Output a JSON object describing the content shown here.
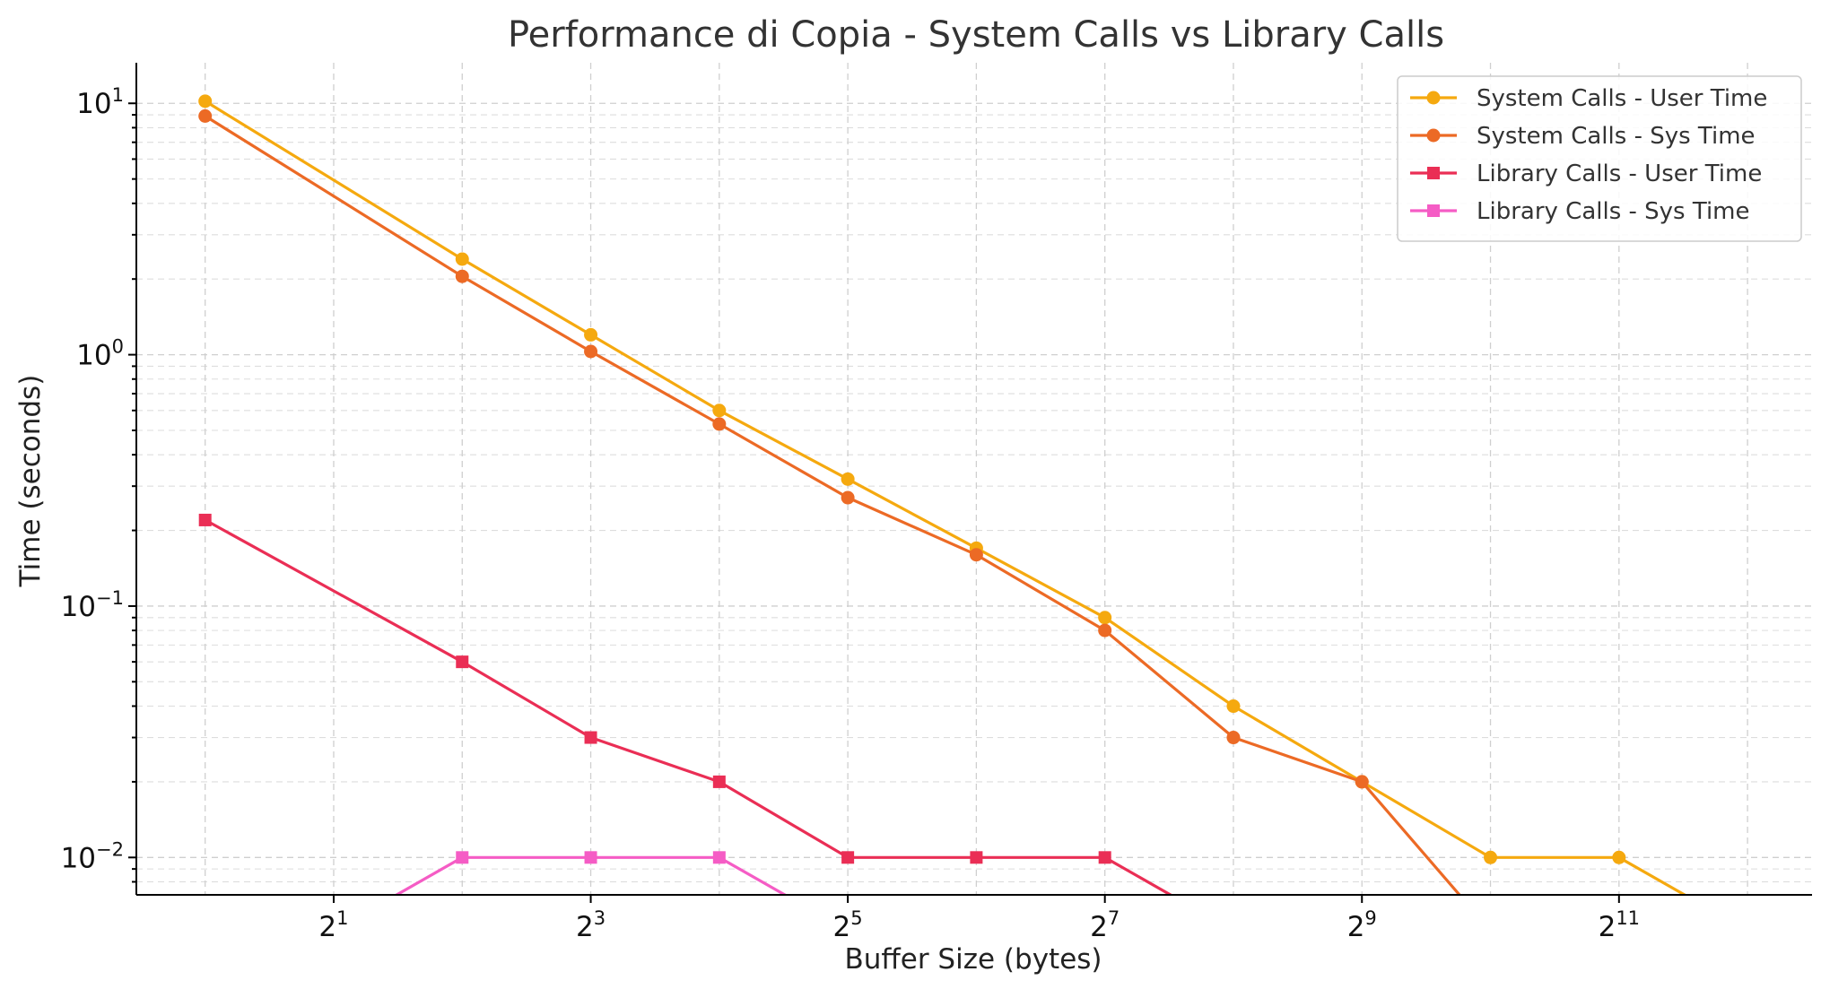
{
  "chart_data": {
    "type": "line",
    "title": "Performance di Copia - System Calls vs Library Calls",
    "xlabel": "Buffer Size (bytes)",
    "ylabel": "Time (seconds)",
    "x_scale": "log2",
    "y_scale": "log10",
    "x_ticks": [
      {
        "base": "2",
        "exp": "1",
        "value": 2
      },
      {
        "base": "2",
        "exp": "3",
        "value": 8
      },
      {
        "base": "2",
        "exp": "5",
        "value": 32
      },
      {
        "base": "2",
        "exp": "7",
        "value": 128
      },
      {
        "base": "2",
        "exp": "9",
        "value": 512
      },
      {
        "base": "2",
        "exp": "11",
        "value": 2048
      }
    ],
    "y_ticks": [
      {
        "base": "10",
        "exp": "1",
        "value": 10
      },
      {
        "base": "10",
        "exp": "0",
        "value": 1
      },
      {
        "base": "10",
        "exp": "−1",
        "value": 0.1
      },
      {
        "base": "10",
        "exp": "−2",
        "value": 0.01
      }
    ],
    "xlim": [
      0.69,
      5800
    ],
    "ylim": [
      0.0071,
      14.5
    ],
    "grid": "on",
    "legend_position": "top-right",
    "series": [
      {
        "name": "System Calls - User Time",
        "color": "#f5a90f",
        "marker": "circle",
        "x": [
          1,
          4,
          8,
          16,
          32,
          64,
          128,
          256,
          512,
          1024,
          2048,
          4096
        ],
        "y": [
          10.2,
          2.4,
          1.2,
          0.6,
          0.32,
          0.17,
          0.09,
          0.04,
          0.02,
          0.01,
          0.01,
          0
        ]
      },
      {
        "name": "System Calls - Sys Time",
        "color": "#ec6a25",
        "marker": "circle",
        "x": [
          1,
          4,
          8,
          16,
          32,
          64,
          128,
          256,
          512,
          1024
        ],
        "y": [
          8.9,
          2.05,
          1.03,
          0.53,
          0.27,
          0.16,
          0.08,
          0.03,
          0.02,
          0
        ]
      },
      {
        "name": "Library Calls - User Time",
        "color": "#ea2e55",
        "marker": "square",
        "x": [
          1,
          4,
          8,
          16,
          32,
          64,
          128,
          256
        ],
        "y": [
          0.22,
          0.06,
          0.03,
          0.02,
          0.01,
          0.01,
          0.01,
          0
        ]
      },
      {
        "name": "Library Calls - Sys Time",
        "color": "#f55cc5",
        "marker": "square",
        "x": [
          2,
          4,
          8,
          16,
          32
        ],
        "y": [
          0,
          0.01,
          0.01,
          0.01,
          0
        ]
      }
    ]
  }
}
